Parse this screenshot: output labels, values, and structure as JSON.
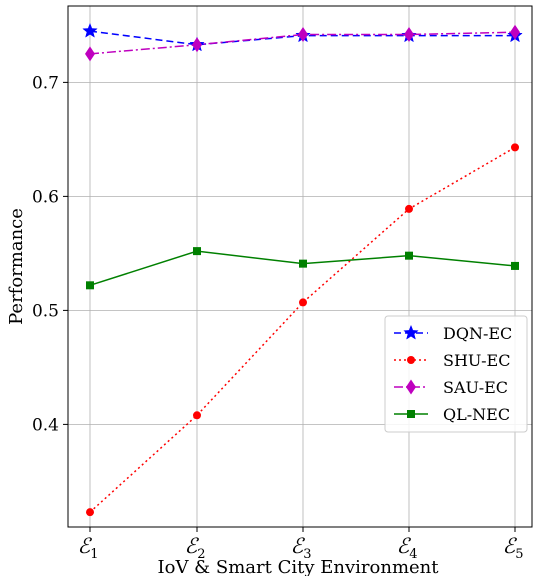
{
  "chart_data": {
    "type": "line",
    "title": "",
    "xlabel": "IoV & Smart City Environment",
    "ylabel": "Performance",
    "categories": [
      "E1",
      "E2",
      "E3",
      "E4",
      "E5"
    ],
    "x_tick_labels": [
      {
        "base": "ℰ",
        "sub": "1"
      },
      {
        "base": "ℰ",
        "sub": "2"
      },
      {
        "base": "ℰ",
        "sub": "3"
      },
      {
        "base": "ℰ",
        "sub": "4"
      },
      {
        "base": "ℰ",
        "sub": "5"
      }
    ],
    "ylim": [
      0.31,
      0.767
    ],
    "yticks": [
      0.4,
      0.5,
      0.6,
      0.7
    ],
    "ytick_labels": [
      "0.4",
      "0.5",
      "0.6",
      "0.7"
    ],
    "grid": true,
    "legend_position": "lower-right",
    "series": [
      {
        "name": "DQN-EC",
        "values": [
          0.745,
          0.733,
          0.741,
          0.741,
          0.741
        ],
        "color": "#0000ff",
        "linestyle": "dashed",
        "marker": "star"
      },
      {
        "name": "SHU-EC",
        "values": [
          0.323,
          0.408,
          0.507,
          0.589,
          0.643
        ],
        "color": "#ff0000",
        "linestyle": "dotted",
        "marker": "circle"
      },
      {
        "name": "SAU-EC",
        "values": [
          0.725,
          0.733,
          0.742,
          0.742,
          0.744
        ],
        "color": "#bf00bf",
        "linestyle": "dashdot",
        "marker": "diamond"
      },
      {
        "name": "QL-NEC",
        "values": [
          0.522,
          0.552,
          0.541,
          0.548,
          0.539
        ],
        "color": "#008000",
        "linestyle": "solid",
        "marker": "square"
      }
    ]
  }
}
